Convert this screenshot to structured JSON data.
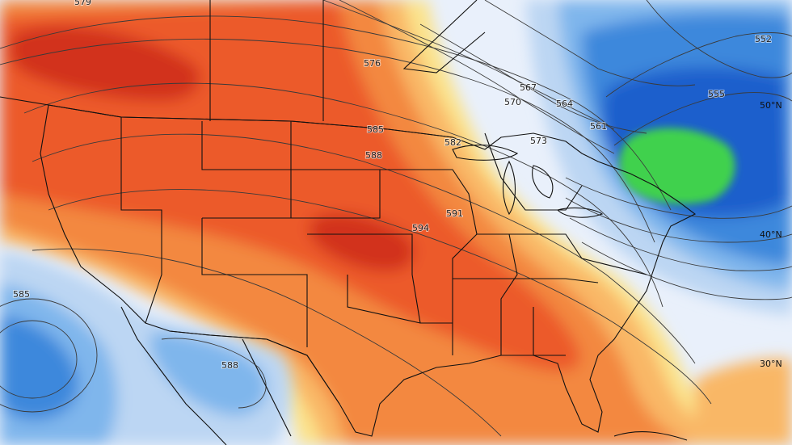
{
  "map": {
    "type": "500mb height anomaly map",
    "region": "Contiguous United States",
    "colors": {
      "strong_positive": "#d2301a",
      "positive": "#ec5a2a",
      "moderate_positive": "#f3883f",
      "weak_positive": "#f9b766",
      "slight_positive": "#fbe38c",
      "neutral": "#e9f0fb",
      "slight_negative": "#bcd6f3",
      "weak_negative": "#7fb6ec",
      "negative": "#3e88dc",
      "strong_negative": "#1c5ecc",
      "extreme_negative": "#3fd14e",
      "contour": "#3a3a3a",
      "borders": "#111111"
    }
  },
  "contour_labels": [
    {
      "text": "579"
    },
    {
      "text": "576"
    },
    {
      "text": "570"
    },
    {
      "text": "567"
    },
    {
      "text": "564"
    },
    {
      "text": "561"
    },
    {
      "text": "585"
    },
    {
      "text": "588"
    },
    {
      "text": "582"
    },
    {
      "text": "591"
    },
    {
      "text": "594"
    },
    {
      "text": "573"
    },
    {
      "text": "555"
    },
    {
      "text": "552"
    },
    {
      "text": "585"
    },
    {
      "text": "588"
    }
  ],
  "latitude_labels": [
    {
      "text": "50°N"
    },
    {
      "text": "40°N"
    },
    {
      "text": "30°N"
    }
  ]
}
